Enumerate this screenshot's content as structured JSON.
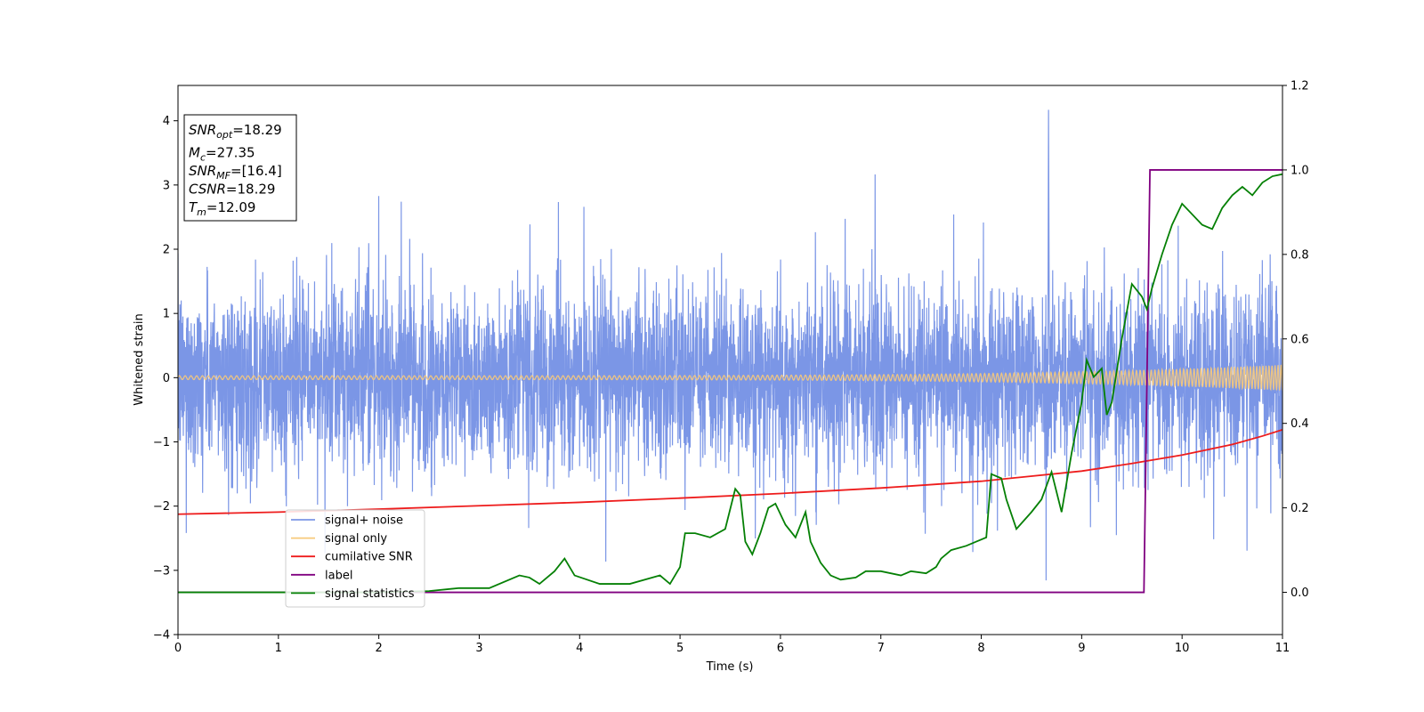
{
  "chart_data": {
    "type": "line",
    "xlabel": "Time (s)",
    "ylabel": "Whitened strain",
    "xlim": [
      0,
      11
    ],
    "ylim": [
      -4,
      4.55
    ],
    "ylim_right": [
      -0.1,
      1.2
    ],
    "x_ticks": [
      "0",
      "1",
      "2",
      "3",
      "4",
      "5",
      "6",
      "7",
      "8",
      "9",
      "10",
      "11"
    ],
    "y_ticks": [
      "4",
      "3",
      "2",
      "1",
      "0",
      "−1",
      "−2",
      "−3",
      "−4"
    ],
    "y_right_ticks": [
      "1.2",
      "1.0",
      "0.8",
      "0.6",
      "0.4",
      "0.2",
      "0.0"
    ],
    "grid": false,
    "legend_position": "lower-left",
    "annotation": [
      {
        "base": "SNR",
        "sub": "opt",
        "rest": "=18.29"
      },
      {
        "base": "M",
        "sub": "c",
        "rest": "=27.35"
      },
      {
        "base": "SNR",
        "sub": "MF",
        "rest": "=[16.4]"
      },
      {
        "base": "CSNR",
        "sub": "",
        "rest": "=18.29"
      },
      {
        "base": "T",
        "sub": "m",
        "rest": "=12.09"
      }
    ],
    "series": [
      {
        "name": "signal+ noise",
        "color": "#7b96e6",
        "axis": "left",
        "style": "noise",
        "amplitude_sd": 0.85,
        "peak_max": 4.17,
        "peak_min": -3.15
      },
      {
        "name": "signal only",
        "color": "#f7c97a",
        "axis": "left",
        "style": "chirp",
        "amplitude_start": 0.03,
        "amplitude_end": 0.2
      },
      {
        "name": "cumilative SNR",
        "color": "#ee1c1c",
        "axis": "right",
        "x": [
          0,
          1,
          2,
          3,
          4,
          5,
          6,
          7,
          8,
          9,
          9.5,
          10,
          10.5,
          10.8,
          11
        ],
        "y": [
          0.185,
          0.19,
          0.197,
          0.205,
          0.213,
          0.223,
          0.234,
          0.247,
          0.263,
          0.287,
          0.305,
          0.325,
          0.35,
          0.37,
          0.385
        ]
      },
      {
        "name": "label",
        "color": "#800080",
        "axis": "right",
        "x": [
          0,
          9.62,
          9.68,
          11
        ],
        "y": [
          0.0,
          0.0,
          1.0,
          1.0
        ]
      },
      {
        "name": "signal statistics",
        "color": "#058005",
        "axis": "right",
        "x": [
          0,
          1,
          2,
          2.5,
          2.8,
          3.1,
          3.4,
          3.5,
          3.6,
          3.75,
          3.85,
          3.95,
          4.2,
          4.5,
          4.8,
          4.9,
          5.0,
          5.05,
          5.15,
          5.3,
          5.45,
          5.55,
          5.6,
          5.65,
          5.72,
          5.8,
          5.88,
          5.95,
          6.05,
          6.15,
          6.25,
          6.3,
          6.4,
          6.5,
          6.6,
          6.75,
          6.85,
          7.0,
          7.2,
          7.3,
          7.45,
          7.55,
          7.6,
          7.7,
          7.85,
          7.95,
          8.05,
          8.1,
          8.2,
          8.25,
          8.35,
          8.5,
          8.6,
          8.7,
          8.8,
          8.9,
          9.0,
          9.05,
          9.12,
          9.2,
          9.25,
          9.3,
          9.4,
          9.5,
          9.6,
          9.65,
          9.7,
          9.8,
          9.9,
          10.0,
          10.2,
          10.3,
          10.4,
          10.5,
          10.6,
          10.7,
          10.8,
          10.9,
          11
        ],
        "y": [
          0.0,
          0.0,
          0.0,
          0.003,
          0.01,
          0.01,
          0.04,
          0.035,
          0.02,
          0.05,
          0.08,
          0.04,
          0.02,
          0.02,
          0.04,
          0.02,
          0.06,
          0.14,
          0.14,
          0.13,
          0.15,
          0.245,
          0.23,
          0.12,
          0.09,
          0.14,
          0.2,
          0.21,
          0.16,
          0.13,
          0.19,
          0.12,
          0.07,
          0.04,
          0.03,
          0.035,
          0.05,
          0.05,
          0.04,
          0.05,
          0.045,
          0.06,
          0.08,
          0.1,
          0.11,
          0.12,
          0.13,
          0.28,
          0.27,
          0.22,
          0.15,
          0.19,
          0.22,
          0.285,
          0.19,
          0.33,
          0.45,
          0.55,
          0.51,
          0.53,
          0.42,
          0.45,
          0.6,
          0.73,
          0.7,
          0.67,
          0.72,
          0.8,
          0.87,
          0.92,
          0.87,
          0.86,
          0.91,
          0.94,
          0.96,
          0.94,
          0.97,
          0.985,
          0.99
        ]
      }
    ]
  }
}
